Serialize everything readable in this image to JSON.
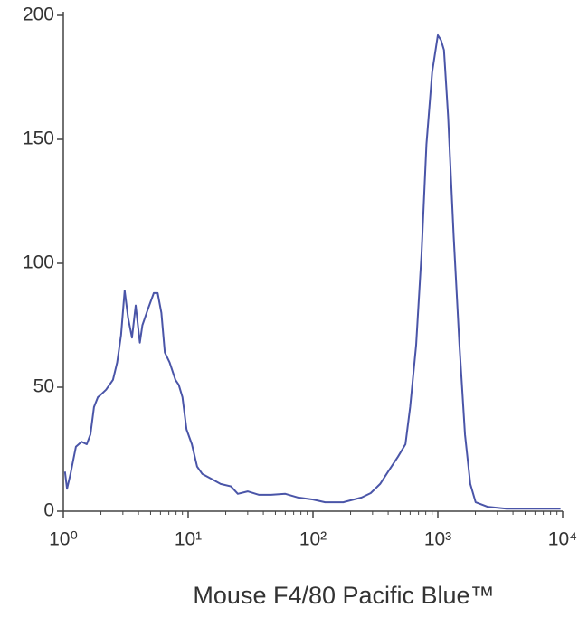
{
  "chart_data": {
    "type": "line",
    "x_label": "Mouse F4/80  Pacific Blue™",
    "x_scale": "log",
    "xlim": [
      1,
      10000
    ],
    "xticks": [
      {
        "value": 1,
        "label": "10⁰"
      },
      {
        "value": 10,
        "label": "10¹"
      },
      {
        "value": 100,
        "label": "10²"
      },
      {
        "value": 1000,
        "label": "10³"
      },
      {
        "value": 10000,
        "label": "10⁴"
      }
    ],
    "ylim": [
      0,
      200
    ],
    "yticks": [
      0,
      50,
      100,
      150,
      200
    ],
    "series": [
      {
        "color": "#4a55a8",
        "x": [
          1.03,
          1.07,
          1.14,
          1.26,
          1.4,
          1.54,
          1.65,
          1.76,
          1.89,
          2,
          2.2,
          2.5,
          2.7,
          2.9,
          3.1,
          3.3,
          3.55,
          3.8,
          4.1,
          4.3,
          4.8,
          5.3,
          5.7,
          6.1,
          6.5,
          7.1,
          7.9,
          8.4,
          9,
          9.7,
          10.7,
          11.8,
          13,
          15.4,
          18.2,
          22,
          25,
          30,
          37,
          46,
          60,
          76,
          100,
          125,
          175,
          245,
          290,
          345,
          400,
          480,
          550,
          600,
          670,
          740,
          810,
          900,
          1000,
          1060,
          1120,
          1210,
          1340,
          1490,
          1650,
          1820,
          2010,
          2500,
          3550,
          5800,
          9600
        ],
        "values": [
          16,
          9,
          15,
          26,
          28,
          27,
          31,
          42,
          46,
          47,
          49,
          53,
          60,
          71,
          89,
          78,
          70,
          83,
          68,
          75,
          82,
          88,
          88,
          80,
          64,
          60,
          53,
          51,
          46,
          33,
          27,
          18,
          15,
          13,
          11,
          10,
          7,
          8,
          6.6,
          6.6,
          7,
          5.5,
          4.7,
          3.6,
          3.6,
          5.5,
          7.3,
          11,
          16,
          22,
          27,
          42,
          67,
          104,
          148,
          177,
          192,
          190,
          186,
          159,
          111,
          67,
          31,
          11,
          3.6,
          1.8,
          1,
          1,
          1
        ]
      }
    ]
  }
}
